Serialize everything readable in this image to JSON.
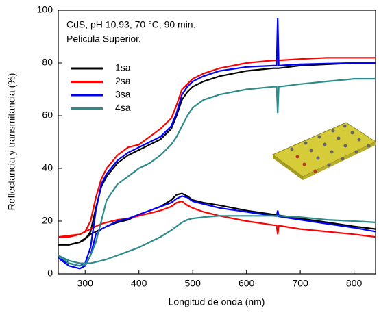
{
  "chart_data": {
    "type": "line",
    "annotations": [
      "CdS, pH 10.93, 70 °C, 90 min.",
      "Pelicula Superior."
    ],
    "xlabel": "Longitud de onda (nm)",
    "ylabel": "Reflectancia y transmitancia (%)",
    "xlim": [
      250,
      840
    ],
    "ylim": [
      0,
      100
    ],
    "xticks": [
      300,
      400,
      500,
      600,
      700,
      800
    ],
    "yticks": [
      0,
      20,
      40,
      60,
      80,
      100
    ],
    "grid": false,
    "legend": "upper left",
    "x": [
      250,
      270,
      290,
      300,
      310,
      320,
      330,
      340,
      360,
      380,
      400,
      420,
      440,
      460,
      470,
      480,
      490,
      500,
      520,
      550,
      600,
      650,
      656,
      658,
      660,
      700,
      750,
      800,
      840
    ],
    "series": [
      {
        "name": "1sa",
        "color": "#000000",
        "values": [
          11,
          11,
          12,
          13,
          16,
          25,
          33,
          37,
          42,
          45,
          47,
          49,
          51,
          55,
          60,
          66,
          69,
          71,
          73,
          75,
          77,
          78,
          78,
          78,
          78,
          79,
          79.5,
          80,
          80
        ],
        "values_2": [
          11,
          11,
          12,
          13.5,
          15,
          16,
          17,
          18,
          19.5,
          20.5,
          22.5,
          24,
          25.5,
          28,
          30,
          30.5,
          29.5,
          28,
          27,
          26,
          24,
          22.5,
          22.3,
          22.2,
          22.2,
          21,
          19.5,
          18,
          17
        ]
      },
      {
        "name": "2sa",
        "color": "#ff0000",
        "values": [
          14,
          14,
          15,
          16,
          20,
          29,
          36,
          40,
          45,
          48,
          49,
          52,
          55,
          59,
          64,
          70,
          72,
          74,
          76,
          78,
          80,
          81,
          81,
          81,
          81,
          81.5,
          82,
          82,
          82
        ],
        "values_2": [
          14,
          14.5,
          15,
          16,
          17,
          18,
          19,
          19.5,
          20.5,
          21,
          22,
          23,
          24,
          25.5,
          27,
          27.5,
          26,
          25,
          23.5,
          22,
          20,
          18.5,
          18.4,
          15,
          18.3,
          17,
          16,
          15,
          14
        ]
      },
      {
        "name": "3sa",
        "color": "#0000ff",
        "values": [
          6,
          4,
          3,
          4,
          10,
          24,
          34,
          38,
          43,
          46,
          48,
          50,
          52,
          56,
          61,
          68,
          71,
          73,
          75,
          77,
          78.5,
          79,
          79,
          97,
          79,
          79.5,
          79.8,
          80,
          80
        ],
        "values_2": [
          6,
          3,
          2,
          3,
          7,
          15,
          17,
          18,
          20,
          21,
          22.5,
          24,
          25.5,
          27,
          28.5,
          29.5,
          29,
          27.5,
          26.5,
          25,
          23.5,
          22,
          21.9,
          24,
          21.8,
          20.5,
          19,
          17.5,
          16
        ]
      },
      {
        "name": "4sa",
        "color": "#2e8b8b",
        "values": [
          7,
          4,
          3,
          3.5,
          7,
          12,
          20,
          28,
          34,
          37,
          40,
          42,
          45,
          49,
          52,
          56,
          60,
          63,
          66,
          68,
          70,
          71,
          71,
          61,
          71,
          72,
          73,
          74,
          74
        ],
        "values_2": [
          7,
          5,
          4,
          4,
          4,
          4.5,
          5,
          5.5,
          7,
          8.5,
          10,
          12,
          14,
          16.5,
          18,
          19.5,
          20.5,
          21,
          21.5,
          22,
          22,
          22,
          22,
          22,
          22,
          21.5,
          20.5,
          20,
          19.5
        ]
      }
    ]
  }
}
